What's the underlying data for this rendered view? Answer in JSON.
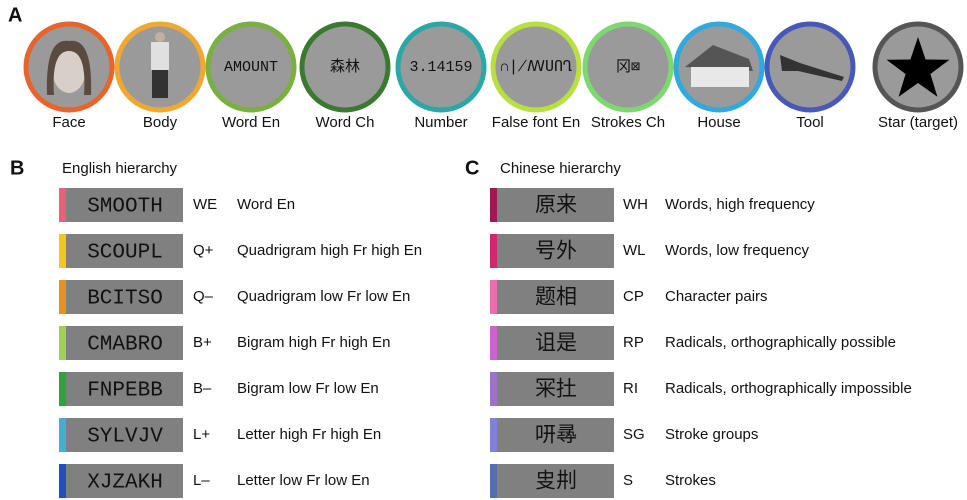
{
  "panel_a": {
    "label": "A",
    "items": [
      {
        "label": "Face",
        "color": "#e8642a",
        "kind": "face"
      },
      {
        "label": "Body",
        "color": "#f0a830",
        "kind": "body"
      },
      {
        "label": "Word En",
        "color": "#7ab040",
        "glyph": "AMOUNT"
      },
      {
        "label": "Word Ch",
        "color": "#3a7a30",
        "glyph": "森林"
      },
      {
        "label": "Number",
        "color": "#2aa8a8",
        "glyph": "3.14159"
      },
      {
        "label": "False font En",
        "color": "#b8e040",
        "glyph": "∩∤ꟿՍՈՂ"
      },
      {
        "label": "Strokes Ch",
        "color": "#7ed870",
        "glyph": "冈⊠"
      },
      {
        "label": "House",
        "color": "#30a8e0",
        "kind": "house"
      },
      {
        "label": "Tool",
        "color": "#4858b8",
        "kind": "tool"
      },
      {
        "label": "Star (target)",
        "color": "#555555",
        "kind": "star"
      }
    ]
  },
  "panel_b": {
    "label": "B",
    "title": "English hierarchy",
    "rows": [
      {
        "stimulus": "SMOOTH",
        "code": "WE",
        "description": "Word En",
        "color": "#e8607a"
      },
      {
        "stimulus": "SCOUPL",
        "code": "Q+",
        "description": "Quadrigram high Fr high En",
        "color": "#f0c820"
      },
      {
        "stimulus": "BCITSO",
        "code": "Q–",
        "description": "Quadrigram low Fr low En",
        "color": "#e89020"
      },
      {
        "stimulus": "CMABRO",
        "code": "B+",
        "description": "Bigram high Fr high En",
        "color": "#a0d050"
      },
      {
        "stimulus": "FNPEBB",
        "code": "B–",
        "description": "Bigram low Fr low En",
        "color": "#30a040"
      },
      {
        "stimulus": "SYLVJV",
        "code": "L+",
        "description": "Letter high Fr high En",
        "color": "#40b0d0"
      },
      {
        "stimulus": "XJZAKH",
        "code": "L–",
        "description": "Letter low Fr low En",
        "color": "#2050c0"
      }
    ]
  },
  "panel_c": {
    "label": "C",
    "title": "Chinese hierarchy",
    "rows": [
      {
        "stimulus": "原来",
        "code": "WH",
        "description": "Words, high frequency",
        "color": "#a01850"
      },
      {
        "stimulus": "号外",
        "code": "WL",
        "description": "Words, low frequency",
        "color": "#d02870"
      },
      {
        "stimulus": "题相",
        "code": "CP",
        "description": "Character pairs",
        "color": "#e870b0"
      },
      {
        "stimulus": "诅是",
        "code": "RP",
        "description": "Radicals, orthographically possible",
        "color": "#d060d0"
      },
      {
        "stimulus": "冞扗",
        "code": "RI",
        "description": "Radicals, orthographically impossible",
        "color": "#a070d0"
      },
      {
        "stimulus": "咞㝷",
        "code": "SG",
        "description": "Stroke groups",
        "color": "#8080e0"
      },
      {
        "stimulus": "㕜㓝",
        "code": "S",
        "description": "Strokes",
        "color": "#5070b0"
      }
    ]
  }
}
